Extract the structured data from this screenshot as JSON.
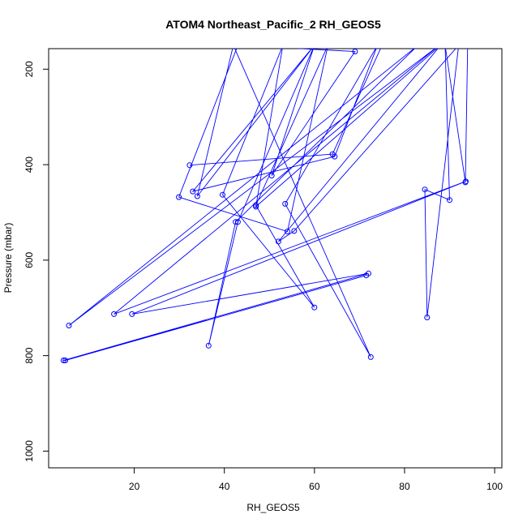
{
  "chart_data": {
    "type": "line",
    "title": "ATOM4 Northeast_Pacific_2 RH_GEOS5",
    "xlabel": "RH_GEOS5",
    "ylabel": "Pressure (mbar)",
    "xlim": [
      1.0,
      101.6
    ],
    "ylim": [
      1035,
      157
    ],
    "y_reversed": true,
    "x_ticks": [
      20,
      40,
      60,
      80,
      100
    ],
    "y_ticks": [
      200,
      400,
      600,
      800,
      1000
    ],
    "grid": false,
    "legend": "none",
    "color": "#0000ff",
    "series": [
      {
        "x": [
          32.3,
          64,
          75,
          94,
          93.5,
          89,
          90,
          84.5,
          85,
          92,
          55.5,
          52,
          88,
          47,
          53,
          39.6,
          60,
          47,
          63,
          54,
          29.9,
          43,
          69,
          50.5,
          60,
          33,
          64.5,
          74,
          53.5,
          72.5,
          42,
          34,
          60,
          43,
          36.5,
          42.5,
          83,
          5.5,
          87.7,
          15.5,
          93.6,
          19.5,
          72,
          4.3,
          4.7,
          71.5
        ],
        "y": [
          401,
          378,
          150,
          150,
          437,
          150,
          474,
          452,
          720,
          150,
          539,
          561,
          150,
          488,
          150,
          463,
          699,
          485,
          150,
          540,
          468,
          150,
          163,
          423,
          150,
          456,
          383,
          150,
          482,
          803,
          150,
          466,
          150,
          520,
          779,
          520,
          150,
          737,
          150,
          713,
          435,
          713,
          628,
          810,
          810,
          632
        ]
      }
    ]
  }
}
